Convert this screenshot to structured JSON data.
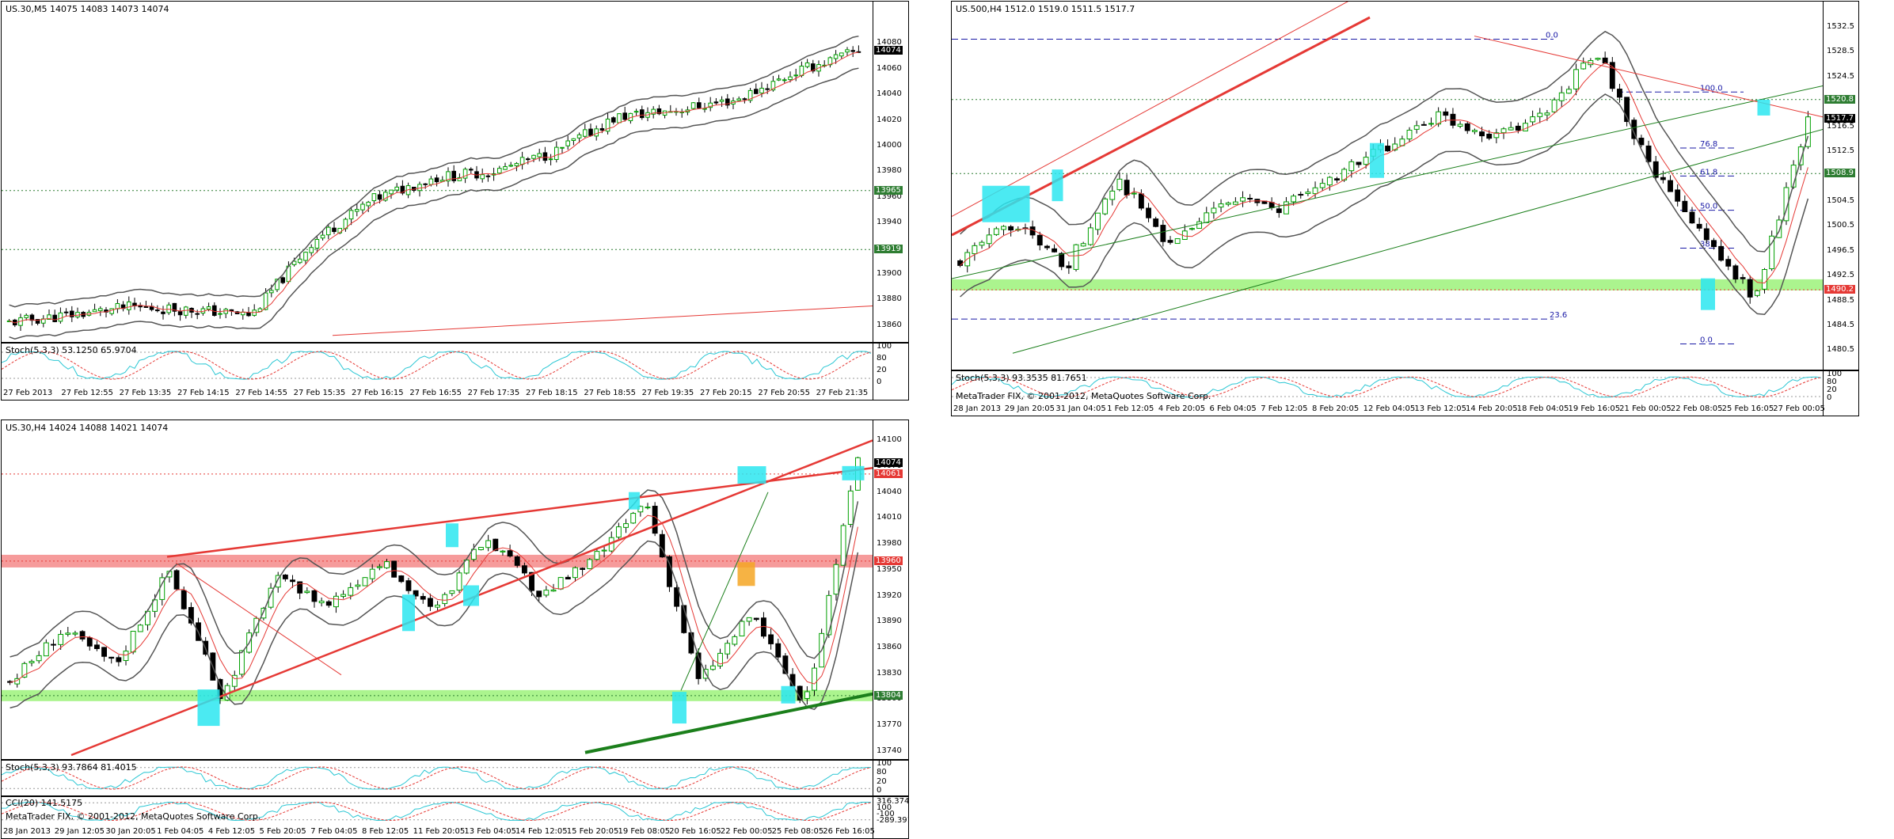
{
  "panels": [
    {
      "id": "us30-m5",
      "header": "US.30,M5  14075 14083 14073 14074",
      "stoch_label": "Stoch(5,3,3) 53.1250 65.9704",
      "cci_label": "",
      "copyright": "",
      "price_ticks": [
        "14080",
        "14060",
        "14040",
        "14020",
        "14000",
        "13980",
        "13960",
        "13940",
        "13920",
        "13900",
        "13880",
        "13860"
      ],
      "sub_ticks": [
        "100",
        "80",
        "20",
        "0"
      ],
      "tags": [
        {
          "text": "14074",
          "color": "#000000",
          "value": 14074
        },
        {
          "text": "13965",
          "color": "#2e7d32",
          "value": 13965
        },
        {
          "text": "13919",
          "color": "#2e7d32",
          "value": 13919
        }
      ],
      "time_ticks": [
        "27 Feb 2013",
        "27 Feb 12:55",
        "27 Feb 13:35",
        "27 Feb 14:15",
        "27 Feb 14:55",
        "27 Feb 15:35",
        "27 Feb 16:15",
        "27 Feb 16:55",
        "27 Feb 17:35",
        "27 Feb 18:15",
        "27 Feb 18:55",
        "27 Feb 19:35",
        "27 Feb 20:15",
        "27 Feb 20:55",
        "27 Feb 21:35"
      ]
    },
    {
      "id": "us500-h4",
      "header": "US.500,H4  1512.0 1519.0 1511.5 1517.7",
      "stoch_label": "Stoch(5,3,3) 93.3535 81.7651",
      "cci_label": "",
      "copyright": "MetaTrader FIX, © 2001-2012, MetaQuotes Software Corp.",
      "price_ticks": [
        "1532.5",
        "1528.5",
        "1524.5",
        "1520.5",
        "1516.5",
        "1512.5",
        "1508.5",
        "1504.5",
        "1500.5",
        "1496.5",
        "1492.5",
        "1488.5",
        "1484.5",
        "1480.5"
      ],
      "sub_ticks": [
        "100",
        "80",
        "20",
        "0"
      ],
      "tags": [
        {
          "text": "1520.8",
          "color": "#2e7d32",
          "value": 1520.8
        },
        {
          "text": "1517.7",
          "color": "#000000",
          "value": 1517.7
        },
        {
          "text": "1508.9",
          "color": "#2e7d32",
          "value": 1508.9
        },
        {
          "text": "1490.2",
          "color": "#e53935",
          "value": 1490.2
        }
      ],
      "fib_labels": [
        "0.0",
        "100.0",
        "76.8",
        "61.8",
        "50.0",
        "38.2",
        "23.6",
        "23.6",
        "0.0"
      ],
      "time_ticks": [
        "28 Jan 2013",
        "29 Jan 20:05",
        "31 Jan 04:05",
        "1 Feb 12:05",
        "4 Feb 20:05",
        "6 Feb 04:05",
        "7 Feb 12:05",
        "8 Feb 20:05",
        "12 Feb 04:05",
        "13 Feb 12:05",
        "14 Feb 20:05",
        "18 Feb 04:05",
        "19 Feb 16:05",
        "21 Feb 00:05",
        "22 Feb 08:05",
        "25 Feb 16:05",
        "27 Feb 00:05"
      ]
    },
    {
      "id": "us30-h4",
      "header": "US.30,H4  14024 14088 14021 14074",
      "stoch_label": "Stoch(5,3,3) 93.7864 81.4015",
      "cci_label": "CCI(20) 141.5175",
      "copyright": "MetaTrader FIX, © 2001-2012, MetaQuotes Software Corp.",
      "price_ticks": [
        "14100",
        "14070",
        "14040",
        "14010",
        "13980",
        "13950",
        "13920",
        "13890",
        "13860",
        "13830",
        "13800",
        "13770",
        "13740"
      ],
      "sub_ticks": [
        "100",
        "80",
        "20",
        "0"
      ],
      "cci_ticks": [
        "316.374",
        "100",
        "-100",
        "-289.391"
      ],
      "tags": [
        {
          "text": "14074",
          "color": "#000000",
          "value": 14074
        },
        {
          "text": "14061",
          "color": "#e53935",
          "value": 14061
        },
        {
          "text": "13960",
          "color": "#e53935",
          "value": 13960
        },
        {
          "text": "13804",
          "color": "#2e7d32",
          "value": 13804
        }
      ],
      "time_ticks": [
        "28 Jan 2013",
        "29 Jan 12:05",
        "30 Jan 20:05",
        "1 Feb 04:05",
        "4 Feb 12:05",
        "5 Feb 20:05",
        "7 Feb 04:05",
        "8 Feb 12:05",
        "11 Feb 20:05",
        "13 Feb 04:05",
        "14 Feb 12:05",
        "15 Feb 20:05",
        "19 Feb 08:05",
        "20 Feb 16:05",
        "22 Feb 00:05",
        "25 Feb 08:05",
        "26 Feb 16:05"
      ]
    }
  ],
  "colors": {
    "bull": "#00a000",
    "bear": "#d50000",
    "band": "#555555",
    "ma": "#e53935",
    "zone_green": "#9cf27a",
    "zone_red": "#f48a8a",
    "cyan": "#2ce6f0",
    "orange": "#f5a623",
    "stoch_main": "#2bc7d4",
    "stoch_signal": "#e53935",
    "fib": "#1a1aa6"
  },
  "chart_data": [
    {
      "panel": "us30-m5",
      "type": "line",
      "ylim": [
        13850,
        14100
      ],
      "x": [
        "27 Feb 12:15",
        "27 Feb 12:55",
        "27 Feb 13:35",
        "27 Feb 14:15",
        "27 Feb 14:55",
        "27 Feb 15:35",
        "27 Feb 16:15",
        "27 Feb 16:55",
        "27 Feb 17:35",
        "27 Feb 18:15",
        "27 Feb 18:55",
        "27 Feb 19:35",
        "27 Feb 20:15",
        "27 Feb 20:55",
        "27 Feb 21:35"
      ],
      "series": [
        {
          "values": [
            13862,
            13868,
            13874,
            13872,
            13868,
            13925,
            13958,
            13975,
            13980,
            13995,
            14022,
            14028,
            14036,
            14058,
            14074
          ]
        }
      ],
      "levels": [
        13965,
        13919
      ]
    },
    {
      "panel": "us500-h4",
      "type": "line",
      "ylim": [
        1478,
        1534
      ],
      "x": [
        "28 Jan",
        "29 Jan",
        "31 Jan",
        "1 Feb",
        "4 Feb",
        "6 Feb",
        "7 Feb",
        "8 Feb",
        "12 Feb",
        "13 Feb",
        "14 Feb",
        "18 Feb",
        "19 Feb",
        "21 Feb",
        "22 Feb",
        "25 Feb",
        "27 Feb"
      ],
      "series": [
        {
          "values": [
            1495,
            1501,
            1494,
            1508,
            1497,
            1505,
            1503,
            1508,
            1513,
            1518,
            1515,
            1518,
            1529,
            1510,
            1499,
            1489,
            1517.7
          ]
        }
      ],
      "levels": [
        1520.8,
        1508.9,
        1490.2
      ]
    },
    {
      "panel": "us30-h4",
      "type": "line",
      "ylim": [
        13735,
        14105
      ],
      "x": [
        "28 Jan",
        "29 Jan",
        "30 Jan",
        "1 Feb",
        "4 Feb",
        "5 Feb",
        "7 Feb",
        "8 Feb",
        "11 Feb",
        "13 Feb",
        "14 Feb",
        "15 Feb",
        "19 Feb",
        "20 Feb",
        "22 Feb",
        "25 Feb",
        "26 Feb"
      ],
      "series": [
        {
          "values": [
            13820,
            13880,
            13840,
            13950,
            13800,
            13940,
            13910,
            13960,
            13900,
            13990,
            13920,
            13960,
            14030,
            13820,
            13900,
            13790,
            14074
          ]
        }
      ],
      "levels": [
        14061,
        13960,
        13804
      ]
    }
  ]
}
